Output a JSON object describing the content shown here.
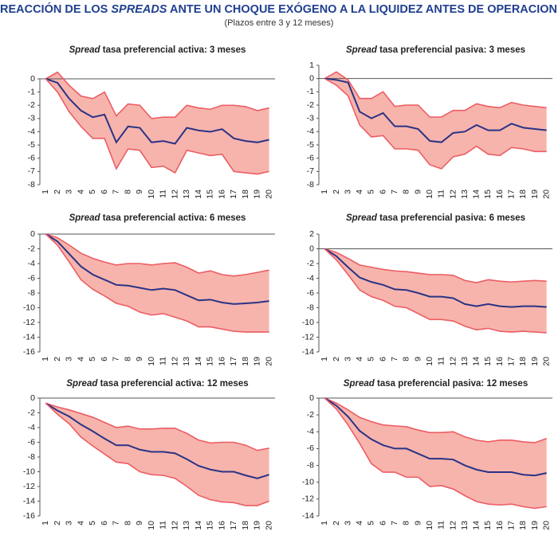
{
  "title": [
    "REACCIÓN DE LOS",
    "SPREADS",
    "ANTE UN CHOQUE EXÓGENO A LA LIQUIDEZ ANTES DE OPERACIONES"
  ],
  "subtitle": "(Plazos entre 3 y 12 meses)",
  "chart_data": [
    {
      "type": "line",
      "title": [
        "Spread",
        "tasa preferencial activa: 3 meses"
      ],
      "band_color": "#f7b4ad",
      "categories": [
        "1",
        "2",
        "3",
        "4",
        "5",
        "6",
        "7",
        "8",
        "9",
        "10",
        "11",
        "12",
        "13",
        "14",
        "15",
        "16",
        "17",
        "18",
        "19",
        "20"
      ],
      "ylim": [
        -8,
        0
      ],
      "yticks": [
        0,
        -1,
        -2,
        -3,
        -4,
        -5,
        -6,
        -7,
        -8
      ],
      "series": [
        {
          "color": "#ec5d63",
          "values": [
            0,
            0.5,
            -0.5,
            -1.3,
            -1.5,
            -1.0,
            -2.8,
            -1.9,
            -2.0,
            -3.0,
            -2.9,
            -2.9,
            -2.0,
            -2.2,
            -2.3,
            -2.0,
            -2.0,
            -2.1,
            -2.4,
            -2.2
          ]
        },
        {
          "color": "#2a3384",
          "values": [
            0,
            -0.3,
            -1.5,
            -2.4,
            -2.9,
            -2.7,
            -4.8,
            -3.6,
            -3.7,
            -4.8,
            -4.7,
            -4.9,
            -3.7,
            -3.9,
            -4.0,
            -3.8,
            -4.5,
            -4.7,
            -4.8,
            -4.6
          ]
        },
        {
          "color": "#ec5d63",
          "values": [
            0,
            -1.0,
            -2.5,
            -3.6,
            -4.5,
            -4.5,
            -6.8,
            -5.3,
            -5.4,
            -6.7,
            -6.6,
            -7.1,
            -5.4,
            -5.6,
            -5.8,
            -5.7,
            -7.0,
            -7.1,
            -7.2,
            -7.0
          ]
        }
      ]
    },
    {
      "type": "line",
      "title": [
        "Spread",
        "tasa preferencial pasiva: 3 meses"
      ],
      "band_color": "#f7b4ad",
      "categories": [
        "1",
        "2",
        "3",
        "4",
        "5",
        "6",
        "7",
        "8",
        "9",
        "10",
        "11",
        "12",
        "13",
        "14",
        "15",
        "16",
        "17",
        "18",
        "19",
        "20"
      ],
      "ylim": [
        -8,
        1
      ],
      "yticks": [
        1,
        0,
        -1,
        -2,
        -3,
        -4,
        -5,
        -6,
        -7,
        -8
      ],
      "series": [
        {
          "color": "#ec5d63",
          "values": [
            0,
            0.5,
            -0.1,
            -1.5,
            -1.5,
            -1.0,
            -2.1,
            -2.0,
            -2.0,
            -2.9,
            -2.9,
            -2.4,
            -2.4,
            -1.9,
            -2.1,
            -2.2,
            -1.8,
            -2.0,
            -2.1,
            -2.2
          ]
        },
        {
          "color": "#2a3384",
          "values": [
            0,
            -0.1,
            -0.3,
            -2.5,
            -3.0,
            -2.6,
            -3.6,
            -3.6,
            -3.8,
            -4.7,
            -4.8,
            -4.1,
            -4.0,
            -3.5,
            -3.9,
            -3.9,
            -3.4,
            -3.7,
            -3.8,
            -3.9
          ]
        },
        {
          "color": "#ec5d63",
          "values": [
            0,
            -0.5,
            -1.3,
            -3.5,
            -4.4,
            -4.3,
            -5.3,
            -5.3,
            -5.4,
            -6.5,
            -6.8,
            -5.9,
            -5.7,
            -5.1,
            -5.7,
            -5.8,
            -5.2,
            -5.3,
            -5.5,
            -5.5
          ]
        }
      ]
    },
    {
      "type": "line",
      "title": [
        "Spread",
        "tasa preferencial activa: 6 meses"
      ],
      "band_color": "#f7b4ad",
      "categories": [
        "1",
        "2",
        "3",
        "4",
        "5",
        "6",
        "7",
        "8",
        "9",
        "10",
        "11",
        "12",
        "13",
        "14",
        "15",
        "16",
        "17",
        "18",
        "19",
        "20"
      ],
      "ylim": [
        -16,
        0
      ],
      "yticks": [
        0,
        -2,
        -4,
        -6,
        -8,
        -10,
        -12,
        -14,
        -16
      ],
      "series": [
        {
          "color": "#ec5d63",
          "values": [
            0,
            -0.5,
            -1.5,
            -2.6,
            -3.3,
            -3.8,
            -4.2,
            -4.0,
            -4.0,
            -4.2,
            -4.0,
            -3.9,
            -4.5,
            -5.3,
            -5.0,
            -5.5,
            -5.7,
            -5.5,
            -5.2,
            -4.9
          ]
        },
        {
          "color": "#2a3384",
          "values": [
            0,
            -1.0,
            -2.7,
            -4.4,
            -5.5,
            -6.2,
            -6.9,
            -7.0,
            -7.3,
            -7.6,
            -7.4,
            -7.6,
            -8.3,
            -9.0,
            -8.9,
            -9.3,
            -9.5,
            -9.4,
            -9.3,
            -9.1
          ]
        },
        {
          "color": "#ec5d63",
          "values": [
            0,
            -1.5,
            -3.8,
            -6.2,
            -7.5,
            -8.4,
            -9.4,
            -9.8,
            -10.6,
            -11.0,
            -10.8,
            -11.3,
            -11.8,
            -12.6,
            -12.6,
            -12.9,
            -13.2,
            -13.3,
            -13.3,
            -13.3
          ]
        }
      ]
    },
    {
      "type": "line",
      "title": [
        "Spread",
        "tasa preferencial pasiva: 6 meses"
      ],
      "band_color": "#f7b4ad",
      "categories": [
        "1",
        "2",
        "3",
        "4",
        "5",
        "6",
        "7",
        "8",
        "9",
        "10",
        "11",
        "12",
        "13",
        "14",
        "15",
        "16",
        "17",
        "18",
        "19",
        "20"
      ],
      "ylim": [
        -14,
        2
      ],
      "yticks": [
        2,
        0,
        -2,
        -4,
        -6,
        -8,
        -10,
        -12,
        -14
      ],
      "series": [
        {
          "color": "#ec5d63",
          "values": [
            0,
            -0.5,
            -1.3,
            -2.2,
            -2.5,
            -2.8,
            -3.0,
            -3.1,
            -3.3,
            -3.5,
            -3.5,
            -3.6,
            -4.3,
            -4.6,
            -4.2,
            -4.4,
            -4.5,
            -4.4,
            -4.3,
            -4.4
          ]
        },
        {
          "color": "#2a3384",
          "values": [
            0,
            -1.0,
            -2.5,
            -3.9,
            -4.5,
            -4.9,
            -5.5,
            -5.6,
            -6.0,
            -6.5,
            -6.5,
            -6.7,
            -7.5,
            -7.8,
            -7.5,
            -7.8,
            -7.9,
            -7.8,
            -7.8,
            -7.9
          ]
        },
        {
          "color": "#ec5d63",
          "values": [
            0,
            -1.5,
            -3.5,
            -5.6,
            -6.5,
            -7.0,
            -7.8,
            -8.0,
            -8.8,
            -9.6,
            -9.6,
            -9.8,
            -10.5,
            -11.0,
            -10.8,
            -11.2,
            -11.3,
            -11.2,
            -11.3,
            -11.4
          ]
        }
      ]
    },
    {
      "type": "line",
      "title": [
        "Spread",
        "tasa preferencial activa: 12 meses"
      ],
      "band_color": "#f7b4ad",
      "categories": [
        "1",
        "2",
        "3",
        "4",
        "5",
        "6",
        "7",
        "8",
        "9",
        "10",
        "11",
        "12",
        "13",
        "14",
        "15",
        "16",
        "17",
        "18",
        "19",
        "20"
      ],
      "ylim": [
        -16,
        0
      ],
      "yticks": [
        0,
        -2,
        -4,
        -6,
        -8,
        -10,
        -12,
        -14,
        -16
      ],
      "series": [
        {
          "color": "#ec5d63",
          "values": [
            -0.7,
            -1.2,
            -1.6,
            -2.1,
            -2.6,
            -3.3,
            -4.0,
            -3.8,
            -4.2,
            -4.2,
            -4.1,
            -4.1,
            -4.8,
            -5.7,
            -6.1,
            -6.0,
            -6.0,
            -6.4,
            -7.1,
            -6.8
          ]
        },
        {
          "color": "#2a3384",
          "values": [
            -0.7,
            -1.7,
            -2.5,
            -3.6,
            -4.5,
            -5.5,
            -6.4,
            -6.4,
            -7.0,
            -7.3,
            -7.3,
            -7.5,
            -8.3,
            -9.2,
            -9.7,
            -10.0,
            -10.0,
            -10.5,
            -10.9,
            -10.4
          ]
        },
        {
          "color": "#ec5d63",
          "values": [
            -0.7,
            -2.2,
            -3.5,
            -5.3,
            -6.5,
            -7.6,
            -8.7,
            -8.9,
            -10.0,
            -10.4,
            -10.5,
            -10.9,
            -12.0,
            -13.2,
            -13.8,
            -14.1,
            -14.2,
            -14.6,
            -14.6,
            -14.0
          ]
        }
      ]
    },
    {
      "type": "line",
      "title": [
        "Spread",
        "tasa preferencial pasiva: 12 meses"
      ],
      "band_color": "#f7b4ad",
      "categories": [
        "1",
        "2",
        "3",
        "4",
        "5",
        "6",
        "7",
        "8",
        "9",
        "10",
        "11",
        "12",
        "13",
        "14",
        "15",
        "16",
        "17",
        "18",
        "19",
        "20"
      ],
      "ylim": [
        -14,
        0
      ],
      "yticks": [
        0,
        -2,
        -4,
        -6,
        -8,
        -10,
        -12,
        -14
      ],
      "series": [
        {
          "color": "#ec5d63",
          "values": [
            0,
            -0.6,
            -1.4,
            -2.3,
            -2.8,
            -3.2,
            -3.3,
            -3.4,
            -3.8,
            -4.1,
            -4.1,
            -4.0,
            -4.6,
            -5.0,
            -5.2,
            -5.0,
            -5.0,
            -5.2,
            -5.3,
            -4.8
          ]
        },
        {
          "color": "#2a3384",
          "values": [
            0,
            -0.9,
            -2.2,
            -3.9,
            -4.9,
            -5.6,
            -6.0,
            -6.0,
            -6.6,
            -7.2,
            -7.2,
            -7.3,
            -8.0,
            -8.5,
            -8.8,
            -8.8,
            -8.8,
            -9.1,
            -9.2,
            -8.9
          ]
        },
        {
          "color": "#ec5d63",
          "values": [
            0,
            -1.3,
            -3.2,
            -5.4,
            -7.8,
            -8.8,
            -8.8,
            -9.4,
            -9.4,
            -10.5,
            -10.4,
            -10.8,
            -11.6,
            -12.3,
            -12.6,
            -12.7,
            -12.6,
            -12.9,
            -13.1,
            -12.9
          ]
        }
      ]
    }
  ]
}
